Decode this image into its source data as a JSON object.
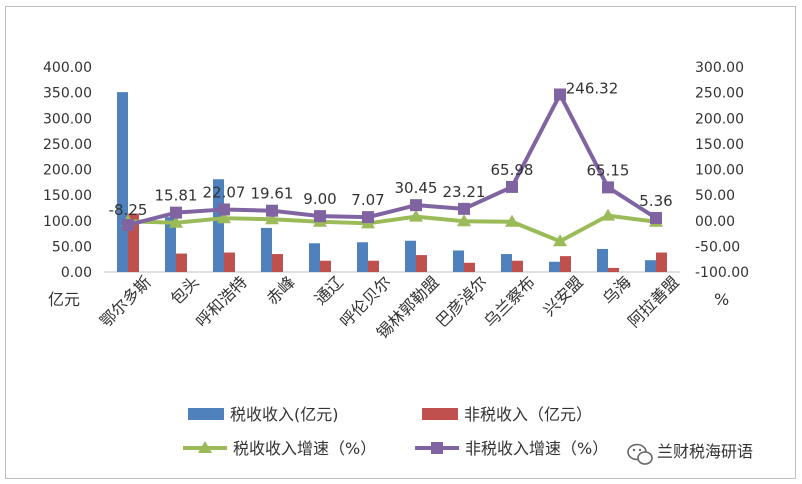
{
  "chart_data": {
    "type": "bar",
    "categories": [
      "鄂尔多斯",
      "包头",
      "呼和浩特",
      "赤峰",
      "通辽",
      "呼伦贝尔",
      "锡林郭勒盟",
      "巴彦淖尔",
      "乌兰察布",
      "兴安盟",
      "乌海",
      "阿拉善盟"
    ],
    "left_axis": {
      "unit": "亿元",
      "ylim": [
        0,
        400
      ],
      "ticks": [
        "0.00",
        "50.00",
        "100.00",
        "150.00",
        "200.00",
        "250.00",
        "300.00",
        "350.00",
        "400.00"
      ]
    },
    "right_axis": {
      "unit": "%",
      "ylim": [
        -100,
        300
      ],
      "ticks": [
        "-100.00",
        "-50.00",
        "00.00",
        "50.00",
        "100.00",
        "150.00",
        "200.00",
        "250.00",
        "300.00"
      ]
    },
    "series": [
      {
        "name": "税收收入(亿元)",
        "type": "bar",
        "axis": "left",
        "color": "#4f81bd",
        "values": [
          351,
          107,
          181,
          86,
          56,
          58,
          61,
          42,
          35,
          20,
          45,
          23
        ]
      },
      {
        "name": "非税收入（亿元）",
        "type": "bar",
        "axis": "left",
        "color": "#c0504d",
        "values": [
          114,
          36,
          38,
          35,
          22,
          22,
          33,
          18,
          22,
          31,
          8,
          38
        ]
      },
      {
        "name": "税收收入增速（%）",
        "type": "line",
        "axis": "right",
        "color": "#9bbb59",
        "marker": "triangle",
        "values": [
          -1,
          -4,
          5,
          3,
          -2,
          -5,
          8,
          -1,
          -2,
          -40,
          10,
          -2
        ]
      },
      {
        "name": "非税收入增速（%）",
        "type": "line",
        "axis": "right",
        "color": "#8064a2",
        "marker": "square",
        "values": [
          -8.25,
          15.81,
          22.07,
          19.61,
          9.0,
          7.07,
          30.45,
          23.21,
          65.98,
          246.32,
          65.15,
          5.36
        ],
        "labels": [
          "-8.25",
          "15.81",
          "22.07",
          "19.61",
          "9.00",
          "7.07",
          "30.45",
          "23.21",
          "65.98",
          "246.32",
          "65.15",
          "5.36"
        ]
      }
    ],
    "grid": false,
    "legend_position": "bottom"
  },
  "watermark": {
    "text": "兰财税海研语",
    "icon": "wechat-icon"
  }
}
